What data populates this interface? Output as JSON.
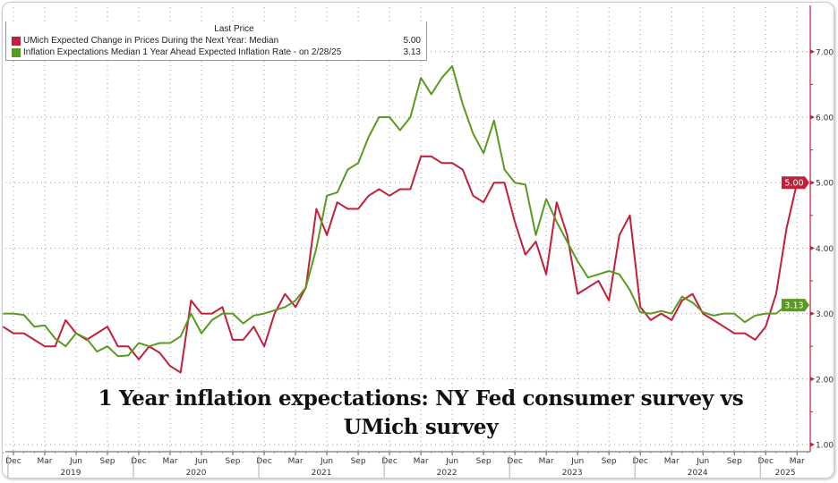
{
  "chart_data": {
    "type": "line",
    "title": "1 Year inflation expectations: NY Fed consumer survey vs UMich survey",
    "legend": {
      "header": "Last Price",
      "placement": "top-left"
    },
    "x_start": "2018-11",
    "x_end": "2025-03",
    "x_tick_labels": [
      "Dec",
      "Mar",
      "Jun",
      "Sep",
      "Dec",
      "Mar",
      "Jun",
      "Sep",
      "Dec",
      "Mar",
      "Jun",
      "Sep",
      "Dec",
      "Mar",
      "Jun",
      "Sep",
      "Dec",
      "Mar",
      "Jun",
      "Sep",
      "Dec",
      "Mar",
      "Jun",
      "Sep",
      "Dec",
      "Mar"
    ],
    "year_labels": [
      "2019",
      "2020",
      "2021",
      "2022",
      "2023",
      "2024",
      "2025"
    ],
    "ylim": [
      1,
      7.5
    ],
    "y_ticks": [
      "1.00",
      "2.00",
      "3.00",
      "4.00",
      "5.00",
      "6.00",
      "7.00"
    ],
    "y_axis_side": "right",
    "grid": true,
    "series": [
      {
        "name": "UMich Expected Change in Prices During the Next Year: Median",
        "last_value_label": "5.00",
        "color": "#c0203a",
        "start": "2018-11",
        "values": [
          2.8,
          2.7,
          2.7,
          2.6,
          2.5,
          2.5,
          2.9,
          2.7,
          2.6,
          2.7,
          2.8,
          2.5,
          2.5,
          2.3,
          2.5,
          2.4,
          2.2,
          2.1,
          3.2,
          3.0,
          3.0,
          3.1,
          2.6,
          2.6,
          2.8,
          2.5,
          3.0,
          3.3,
          3.1,
          3.4,
          4.6,
          4.2,
          4.7,
          4.6,
          4.6,
          4.8,
          4.9,
          4.8,
          4.9,
          4.9,
          5.4,
          5.4,
          5.3,
          5.3,
          5.2,
          4.8,
          4.7,
          5.0,
          5.0,
          4.4,
          3.9,
          4.1,
          3.6,
          4.7,
          4.2,
          3.3,
          3.4,
          3.5,
          3.2,
          4.2,
          4.5,
          3.1,
          2.9,
          3.0,
          2.9,
          3.2,
          3.3,
          3.0,
          2.9,
          2.8,
          2.7,
          2.7,
          2.6,
          2.8,
          3.3,
          4.3,
          5.0
        ]
      },
      {
        "name": "Inflation Expectations Median 1 Year Ahead Expected Inflation Rate -  on 2/28/25",
        "last_value_label": "3.13",
        "color": "#5a9a1e",
        "start": "2018-11",
        "values": [
          3.0,
          3.0,
          2.98,
          2.8,
          2.82,
          2.62,
          2.5,
          2.7,
          2.62,
          2.42,
          2.5,
          2.35,
          2.36,
          2.55,
          2.5,
          2.55,
          2.55,
          2.65,
          3.0,
          2.7,
          2.9,
          3.0,
          3.0,
          2.85,
          2.97,
          3.0,
          3.05,
          3.1,
          3.2,
          3.4,
          4.0,
          4.8,
          4.85,
          5.2,
          5.3,
          5.7,
          6.0,
          6.0,
          5.8,
          6.0,
          6.6,
          6.35,
          6.6,
          6.78,
          6.2,
          5.75,
          5.45,
          5.95,
          5.2,
          5.0,
          4.97,
          4.2,
          4.75,
          4.4,
          4.1,
          3.8,
          3.55,
          3.6,
          3.65,
          3.6,
          3.36,
          3.02,
          3.0,
          3.04,
          3.0,
          3.26,
          3.17,
          3.02,
          2.97,
          3.0,
          3.0,
          2.87,
          2.97,
          3.0,
          3.0,
          3.13
        ]
      }
    ]
  }
}
